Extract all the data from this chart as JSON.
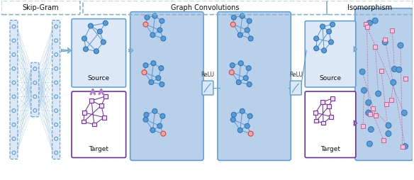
{
  "title_skipgram": "Skip-Gram",
  "title_graphconv": "Graph Convolutions",
  "title_isomorphism": "Isomorphism",
  "relu_label": "ReLU",
  "source_label": "Source",
  "target_label": "Target",
  "blue_light": "#dce8f5",
  "blue_med": "#b8d0ea",
  "blue_node_fill": "#5b9bd5",
  "blue_node_edge": "#2e75b6",
  "red_fill": "#f4a6a6",
  "red_edge": "#d94040",
  "purple": "#7030a0",
  "purple_light": "#b07fcc",
  "purple_fill": "#f0e0f8",
  "pink_fill": "#f5c0d8",
  "pink_edge": "#c06090",
  "dashed_color": "#8ab0cc",
  "arrow_blue_fill": "#9bbdd8",
  "arrow_blue_edge": "#5b9bd5",
  "figsize": [
    5.84,
    2.54
  ],
  "dpi": 100
}
